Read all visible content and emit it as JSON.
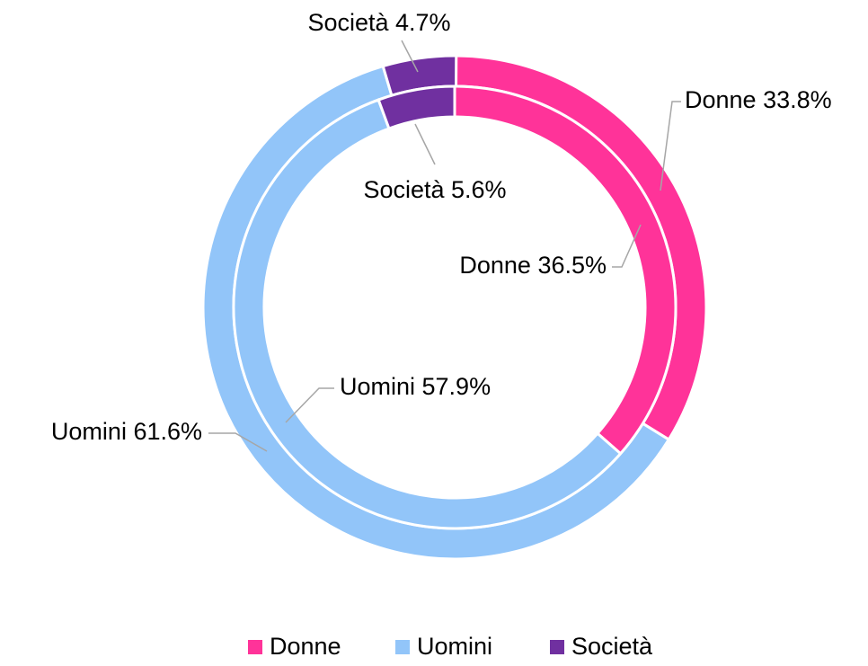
{
  "chart_data": {
    "type": "doughnut",
    "categories": [
      "Donne",
      "Uomini",
      "Società"
    ],
    "colors": [
      "#ff3399",
      "#92c5f9",
      "#7030a0"
    ],
    "series": [
      {
        "values": [
          33.8,
          61.6,
          4.7
        ],
        "value_labels": [
          "Donne 33.8%",
          "Uomini 61.6%",
          "Società 4.7%"
        ]
      },
      {
        "values": [
          36.5,
          57.9,
          5.6
        ],
        "value_labels": [
          "Donne 36.5%",
          "Uomini 57.9%",
          "Società 5.6%"
        ]
      }
    ],
    "legend": "bottom"
  }
}
